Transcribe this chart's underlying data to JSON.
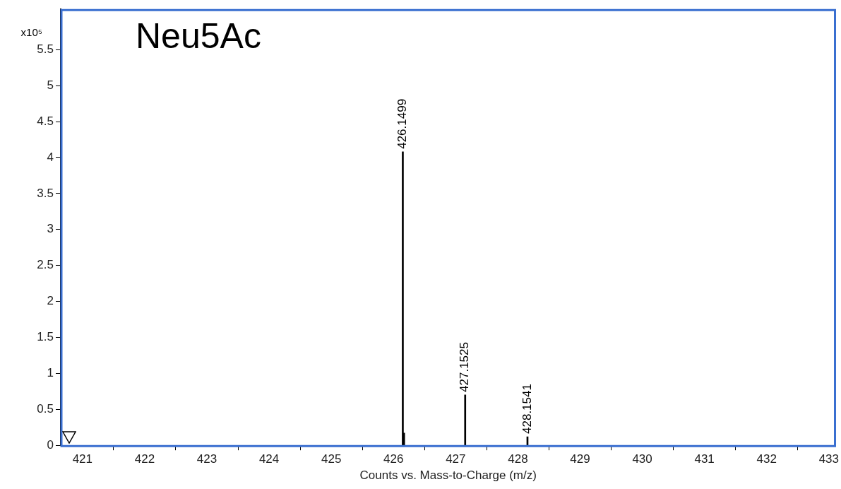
{
  "chart_data": {
    "type": "bar",
    "title": "Neu5Ac",
    "xlabel": "Counts vs. Mass-to-Charge (m/z)",
    "ylabel": "x10⁵",
    "x": [
      426.1499,
      426.17,
      427.1525,
      428.1541
    ],
    "values": [
      4.08,
      0.17,
      0.7,
      0.12
    ],
    "annotations": [
      {
        "text": "426.1499",
        "x": 426.1499,
        "y": 4.08
      },
      {
        "text": "427.1525",
        "x": 427.1525,
        "y": 0.7
      },
      {
        "text": "428.1541",
        "x": 428.1541,
        "y": 0.12
      }
    ],
    "color": "#000000",
    "xlim": [
      420.65,
      433.11
    ],
    "xticks": [
      421,
      422,
      423,
      424,
      425,
      426,
      427,
      428,
      429,
      430,
      431,
      432,
      433
    ],
    "ylim": [
      0,
      6.06
    ],
    "yticks": [
      0,
      0.5,
      1,
      1.5,
      2,
      2.5,
      3,
      3.5,
      4,
      4.5,
      5,
      5.5
    ],
    "grid": false,
    "legend": false
  }
}
